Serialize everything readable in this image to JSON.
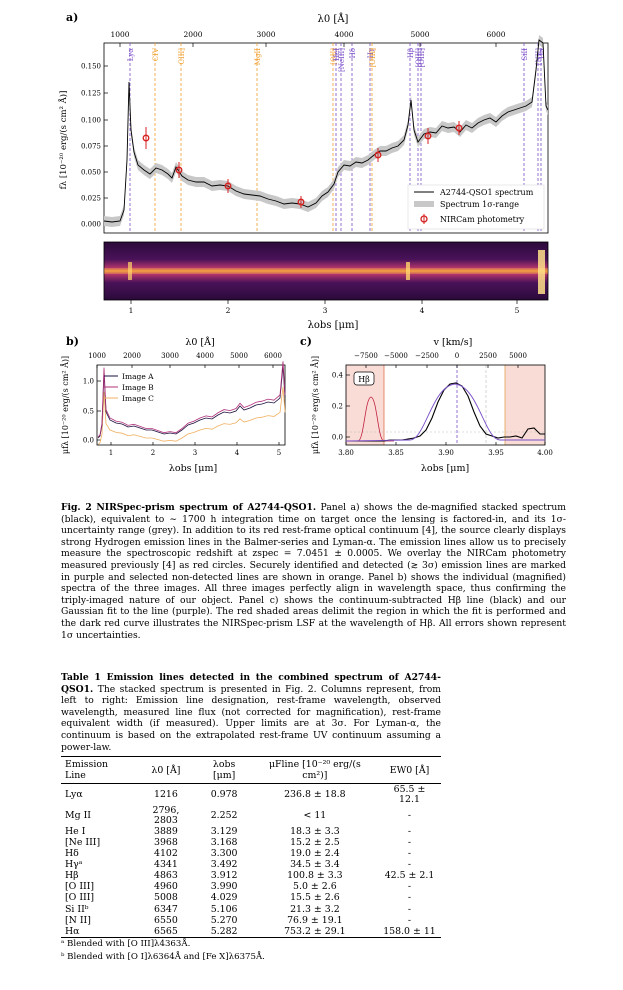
{
  "panel_a": {
    "label": "a)",
    "top_axis_label": "λ0 [Å]",
    "top_ticks": [
      "1000",
      "2000",
      "3000",
      "4000",
      "5000",
      "6000"
    ],
    "bottom_axis_label": "λobs [μm]",
    "bottom_ticks": [
      "1",
      "2",
      "3",
      "4",
      "5"
    ],
    "y_label": "fλ [10⁻²⁰ erg/(s cm² Å)]",
    "y_ticks": [
      "0.000",
      "0.025",
      "0.050",
      "0.075",
      "0.100",
      "0.125",
      "0.150"
    ],
    "lines_detected": [
      "Lyα",
      "Hδ",
      "Hγ",
      "Hβ",
      "[OIII]",
      "SiII",
      "[NII]",
      "Hα",
      "HeI",
      "[NeIII]"
    ],
    "lines_nondetected": [
      "CIV",
      "CIII]",
      "MgII",
      "[OII]",
      "[OIII]"
    ],
    "legend": [
      "A2744-QSO1 spectrum",
      "Spectrum 1σ-range",
      "NIRCam photometry"
    ]
  },
  "panel_b": {
    "label": "b)",
    "top_axis_label": "λ0 [Å]",
    "top_ticks": [
      "1000",
      "2000",
      "3000",
      "4000",
      "5000",
      "6000"
    ],
    "bottom_axis_label": "λobs [μm]",
    "bottom_ticks": [
      "1",
      "2",
      "3",
      "4",
      "5"
    ],
    "y_label": "μfλ [10⁻²⁰ erg/(s cm² Å)]",
    "y_ticks": [
      "0.0",
      "0.5",
      "1.0"
    ],
    "legend": [
      "Image A",
      "Image B",
      "Image C"
    ]
  },
  "panel_c": {
    "label": "c)",
    "top_axis_label": "v [km/s]",
    "top_ticks": [
      "−7500",
      "−5000",
      "−2500",
      "0",
      "2500",
      "5000"
    ],
    "bottom_axis_label": "λobs [μm]",
    "bottom_ticks": [
      "3.80",
      "3.85",
      "3.90",
      "3.95",
      "4.00"
    ],
    "y_label": "μfλ [10⁻²⁰ erg/(s cm² Å)]",
    "y_ticks": [
      "0.0",
      "0.2",
      "0.4"
    ],
    "tag": "Hβ"
  },
  "figure_caption": {
    "title": "Fig. 2 NIRSpec-prism spectrum of A2744-QSO1.",
    "text": "Panel a) shows the de-magnified stacked spectrum (black), equivalent to ∼ 1700 h integration time on target once the lensing is factored-in, and its 1σ-uncertainty range (grey). In addition to its red rest-frame optical continuum [4], the source clearly displays strong Hydrogen emission lines in the Balmer-series and Lyman-α. The emission lines allow us to precisely measure the spectroscopic redshift at zspec = 7.0451 ± 0.0005. We overlay the NIRCam photometry measured previously [4] as red circles. Securely identified and detected (≳ 3σ) emission lines are marked in purple and selected non-detected lines are shown in orange. Panel b) shows the individual (magnified) spectra of the three images. All three images perfectly align in wavelength space, thus confirming the triply-imaged nature of our object. Panel c) shows the continuum-subtracted Hβ line (black) and our Gaussian fit to the line (purple). The red shaded areas delimit the region in which the fit is performed and the dark red curve illustrates the NIRSpec-prism LSF at the wavelength of Hβ. All errors shown represent 1σ uncertainties."
  },
  "table_caption": {
    "title": "Table 1 Emission lines detected in the combined spectrum of A2744-QSO1.",
    "text": "The stacked spectrum is presented in Fig. 2. Columns represent, from left to right: Emission line designation, rest-frame wavelength, observed wavelength, measured line flux (not corrected for magnification), rest-frame equivalent width (if measured). Upper limits are at 3σ. For Lyman-α, the continuum is based on the extrapolated rest-frame UV continuum assuming a power-law."
  },
  "table": {
    "headers": [
      "Emission Line",
      "λ0 [Å]",
      "λobs [μm]",
      "μFline [10⁻²⁰ erg/(s cm²)]",
      "EW0 [Å]"
    ],
    "rows": [
      [
        "Lyα",
        "1216",
        "0.978",
        "236.8 ± 18.8",
        "65.5 ± 12.1"
      ],
      [
        "Mg II",
        "2796, 2803",
        "2.252",
        "< 11",
        "-"
      ],
      [
        "He I",
        "3889",
        "3.129",
        "18.3 ± 3.3",
        "-"
      ],
      [
        "[Ne III]",
        "3968",
        "3.168",
        "15.2 ± 2.5",
        "-"
      ],
      [
        "Hδ",
        "4102",
        "3.300",
        "19.0 ± 2.4",
        "-"
      ],
      [
        "Hγᵃ",
        "4341",
        "3.492",
        "34.5 ± 3.4",
        "-"
      ],
      [
        "Hβ",
        "4863",
        "3.912",
        "100.8 ± 3.3",
        "42.5 ± 2.1"
      ],
      [
        "[O III]",
        "4960",
        "3.990",
        "5.0 ± 2.6",
        "-"
      ],
      [
        "[O III]",
        "5008",
        "4.029",
        "15.5 ± 2.6",
        "-"
      ],
      [
        "Si IIᵇ",
        "6347",
        "5.106",
        "21.3 ± 3.2",
        "-"
      ],
      [
        "[N II]",
        "6550",
        "5.270",
        "76.9 ± 19.1",
        "-"
      ],
      [
        "Hα",
        "6565",
        "5.282",
        "753.2 ± 29.1",
        "158.0 ± 11"
      ]
    ]
  },
  "footnotes": [
    "ᵃ Blended with [O III]λ4363Å.",
    "ᵇ Blended with [O I]λ6364Å and [Fe X]λ6375Å."
  ],
  "colors": {
    "detected": "#7b4fc9",
    "nondetected": "#f0a030",
    "photometry": "#d62020",
    "shade": "#f9dcd6"
  }
}
